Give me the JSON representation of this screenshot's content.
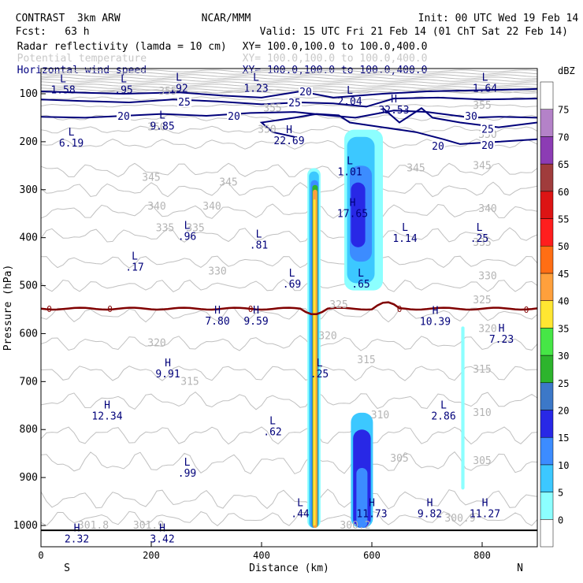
{
  "header": {
    "line1_left": "CONTRAST  3km ARW",
    "line1_center": "NCAR/MMM",
    "line1_right": "Init: 00 UTC Wed 19 Feb 14",
    "line2_left": "Fcst:   63 h",
    "line2_right": "Valid: 15 UTC Fri 21 Feb 14 (01 ChT Sat 22 Feb 14)",
    "fields": [
      {
        "name": "Radar reflectivity (lamda = 10 cm)",
        "xy": "XY= 100.0,100.0 to 100.0,400.0",
        "color": "#000000"
      },
      {
        "name": "Potential temperature",
        "xy": "XY= 100.0,100.0 to 100.0,400.0",
        "color": "#c8c8c8"
      },
      {
        "name": "Horizontal wind speed",
        "xy": "XY= 100.0,100.0 to 100.0,400.0",
        "color": "#000080"
      }
    ]
  },
  "chart_data": {
    "type": "contour",
    "xlabel": "Distance (km)",
    "ylabel": "Pressure (hPa)",
    "x_ticks": [
      0,
      200,
      400,
      600,
      800
    ],
    "x_range": [
      0,
      900
    ],
    "y_ticks": [
      100,
      200,
      300,
      400,
      500,
      600,
      700,
      800,
      900,
      1000
    ],
    "y_range": [
      50,
      1050
    ],
    "left_end_label": "S",
    "right_end_label": "N",
    "colorbar": {
      "units": "dBZ",
      "levels": [
        0,
        5,
        10,
        15,
        20,
        25,
        30,
        35,
        40,
        45,
        50,
        55,
        60,
        65,
        70,
        75
      ],
      "colors": [
        "#ffffff",
        "#8cffff",
        "#3cc8ff",
        "#3c8cff",
        "#2828e6",
        "#3c78c8",
        "#2db42d",
        "#46e646",
        "#ffe632",
        "#ffa03c",
        "#ff6e14",
        "#ff1e1e",
        "#dc1414",
        "#a03c3c",
        "#8c3cb4",
        "#b482c8",
        "#ffffff"
      ]
    },
    "theta_labels": [
      {
        "x": 95,
        "p": 1000,
        "text": "301.8"
      },
      {
        "x": 195,
        "p": 1000,
        "text": "301.9"
      },
      {
        "x": 570,
        "p": 1000,
        "text": "300.2"
      },
      {
        "x": 760,
        "p": 985,
        "text": "300.9"
      },
      {
        "x": 650,
        "p": 860,
        "text": "305"
      },
      {
        "x": 800,
        "p": 865,
        "text": "305"
      },
      {
        "x": 615,
        "p": 770,
        "text": "310"
      },
      {
        "x": 800,
        "p": 765,
        "text": "310"
      },
      {
        "x": 270,
        "p": 700,
        "text": "315"
      },
      {
        "x": 590,
        "p": 655,
        "text": "315"
      },
      {
        "x": 800,
        "p": 675,
        "text": "315"
      },
      {
        "x": 210,
        "p": 620,
        "text": "320"
      },
      {
        "x": 520,
        "p": 605,
        "text": "320"
      },
      {
        "x": 810,
        "p": 590,
        "text": "320"
      },
      {
        "x": 800,
        "p": 530,
        "text": "325"
      },
      {
        "x": 540,
        "p": 540,
        "text": "325"
      },
      {
        "x": 320,
        "p": 470,
        "text": "330"
      },
      {
        "x": 810,
        "p": 480,
        "text": "330"
      },
      {
        "x": 800,
        "p": 410,
        "text": "335"
      },
      {
        "x": 225,
        "p": 380,
        "text": "335"
      },
      {
        "x": 280,
        "p": 380,
        "text": "335"
      },
      {
        "x": 210,
        "p": 335,
        "text": "340"
      },
      {
        "x": 310,
        "p": 335,
        "text": "340"
      },
      {
        "x": 810,
        "p": 340,
        "text": "340"
      },
      {
        "x": 200,
        "p": 275,
        "text": "345"
      },
      {
        "x": 340,
        "p": 285,
        "text": "345"
      },
      {
        "x": 680,
        "p": 255,
        "text": "345"
      },
      {
        "x": 800,
        "p": 250,
        "text": "345"
      },
      {
        "x": 410,
        "p": 175,
        "text": "350"
      },
      {
        "x": 810,
        "p": 185,
        "text": "350"
      },
      {
        "x": 210,
        "p": 170,
        "text": "350"
      },
      {
        "x": 420,
        "p": 130,
        "text": "355"
      },
      {
        "x": 800,
        "p": 125,
        "text": "355"
      },
      {
        "x": 230,
        "p": 95,
        "text": "355"
      }
    ],
    "wind_labels": [
      {
        "x": 260,
        "p": 118,
        "text": "25"
      },
      {
        "x": 460,
        "p": 120,
        "text": "25"
      },
      {
        "x": 480,
        "p": 97,
        "text": "20"
      },
      {
        "x": 150,
        "p": 148,
        "text": "20"
      },
      {
        "x": 350,
        "p": 148,
        "text": "20"
      },
      {
        "x": 780,
        "p": 148,
        "text": "30"
      },
      {
        "x": 810,
        "p": 175,
        "text": "25"
      },
      {
        "x": 720,
        "p": 210,
        "text": "20"
      },
      {
        "x": 810,
        "p": 208,
        "text": "20"
      }
    ],
    "theta_zero_labels": [
      {
        "x": 15,
        "p": 548,
        "text": "0"
      },
      {
        "x": 125,
        "p": 548,
        "text": "0"
      },
      {
        "x": 380,
        "p": 548,
        "text": "0"
      },
      {
        "x": 650,
        "p": 548,
        "text": "0"
      },
      {
        "x": 880,
        "p": 550,
        "text": "0"
      }
    ],
    "extrema": [
      {
        "x": 40,
        "p": 76,
        "kind": "L",
        "value": "1.58"
      },
      {
        "x": 150,
        "p": 76,
        "kind": "L",
        "value": ".95"
      },
      {
        "x": 250,
        "p": 73,
        "kind": "L",
        "value": ".92"
      },
      {
        "x": 390,
        "p": 73,
        "kind": "L",
        "value": "1.23"
      },
      {
        "x": 560,
        "p": 100,
        "kind": "L",
        "value": "2.04"
      },
      {
        "x": 640,
        "p": 118,
        "kind": "H",
        "value": "32.53"
      },
      {
        "x": 805,
        "p": 73,
        "kind": "L",
        "value": "1.64"
      },
      {
        "x": 220,
        "p": 152,
        "kind": "L",
        "value": "9.85"
      },
      {
        "x": 55,
        "p": 187,
        "kind": "L",
        "value": "6.19"
      },
      {
        "x": 450,
        "p": 182,
        "kind": "H",
        "value": "22.69"
      },
      {
        "x": 560,
        "p": 247,
        "kind": "L",
        "value": "1.01"
      },
      {
        "x": 565,
        "p": 334,
        "kind": "H",
        "value": "17.65"
      },
      {
        "x": 660,
        "p": 386,
        "kind": "L",
        "value": "1.14"
      },
      {
        "x": 795,
        "p": 386,
        "kind": "L",
        "value": ".25"
      },
      {
        "x": 265,
        "p": 382,
        "kind": "L",
        "value": ".96"
      },
      {
        "x": 395,
        "p": 400,
        "kind": "L",
        "value": ".81"
      },
      {
        "x": 170,
        "p": 446,
        "kind": "L",
        "value": ".17"
      },
      {
        "x": 455,
        "p": 481,
        "kind": "L",
        "value": ".69"
      },
      {
        "x": 580,
        "p": 481,
        "kind": "L",
        "value": ".65"
      },
      {
        "x": 320,
        "p": 558,
        "kind": "H",
        "value": "7.80"
      },
      {
        "x": 390,
        "p": 558,
        "kind": "H",
        "value": "9.59"
      },
      {
        "x": 715,
        "p": 559,
        "kind": "H",
        "value": "10.39"
      },
      {
        "x": 835,
        "p": 596,
        "kind": "H",
        "value": "7.23"
      },
      {
        "x": 230,
        "p": 668,
        "kind": "H",
        "value": "9.91"
      },
      {
        "x": 505,
        "p": 668,
        "kind": "L",
        "value": ".25"
      },
      {
        "x": 120,
        "p": 756,
        "kind": "H",
        "value": "12.34"
      },
      {
        "x": 730,
        "p": 756,
        "kind": "L",
        "value": "2.86"
      },
      {
        "x": 420,
        "p": 789,
        "kind": "L",
        "value": ".62"
      },
      {
        "x": 265,
        "p": 875,
        "kind": "L",
        "value": ".99"
      },
      {
        "x": 470,
        "p": 960,
        "kind": "L",
        "value": ".44"
      },
      {
        "x": 600,
        "p": 960,
        "kind": "H",
        "value": "11.73"
      },
      {
        "x": 705,
        "p": 960,
        "kind": "H",
        "value": "9.82"
      },
      {
        "x": 805,
        "p": 960,
        "kind": "H",
        "value": "11.27"
      },
      {
        "x": 65,
        "p": 1012,
        "kind": "H",
        "value": "2.32"
      },
      {
        "x": 220,
        "p": 1012,
        "kind": "H",
        "value": "3.42"
      }
    ]
  }
}
